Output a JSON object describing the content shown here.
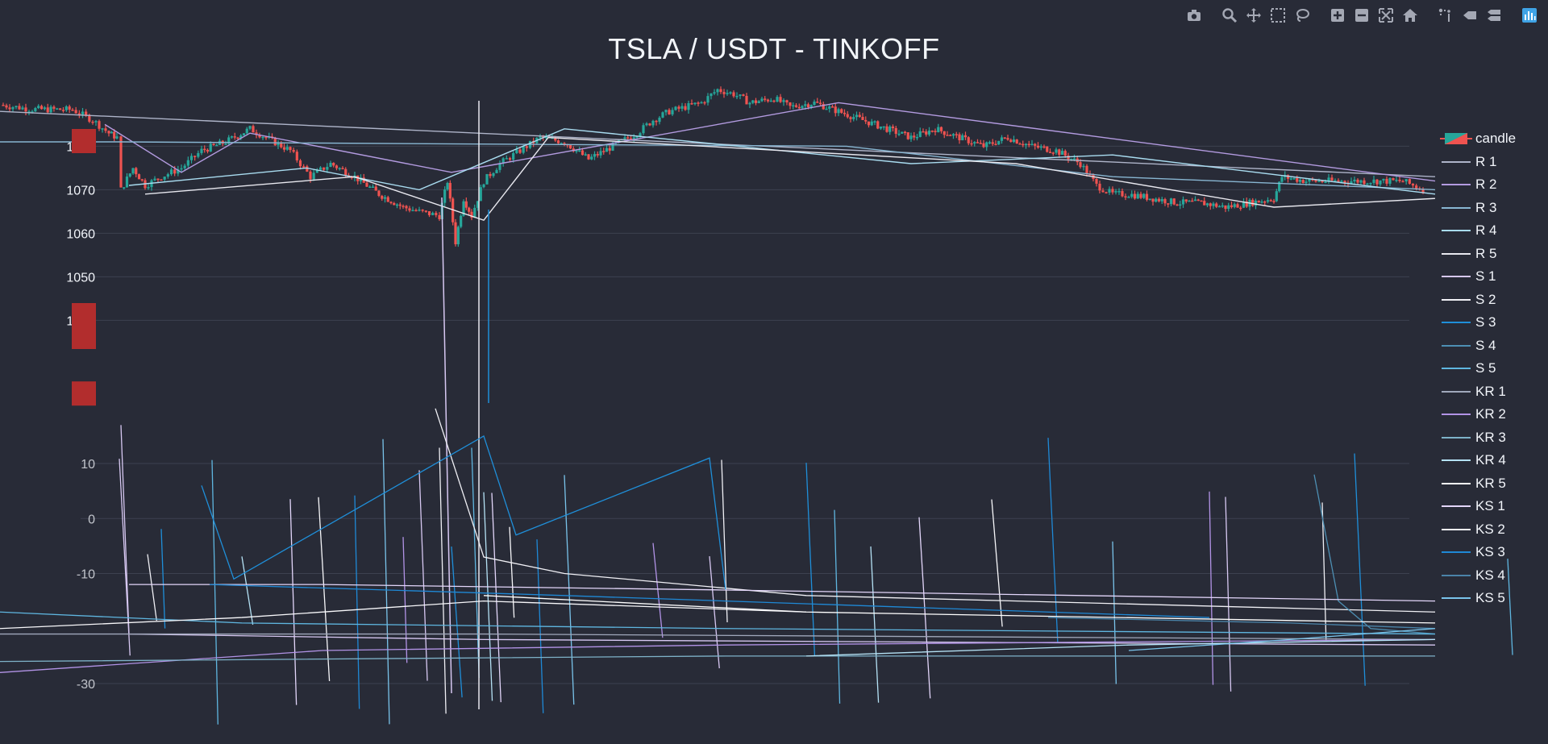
{
  "modebar": {
    "buttons": [
      {
        "name": "camera-icon",
        "group": 1
      },
      {
        "name": "zoom-icon",
        "group": 2
      },
      {
        "name": "pan-icon",
        "group": 2
      },
      {
        "name": "box-select-icon",
        "group": 2
      },
      {
        "name": "lasso-select-icon",
        "group": 2
      },
      {
        "name": "zoom-in-icon",
        "group": 3
      },
      {
        "name": "zoom-out-icon",
        "group": 3
      },
      {
        "name": "autoscale-icon",
        "group": 3
      },
      {
        "name": "reset-axes-icon",
        "group": 3
      },
      {
        "name": "spike-lines-icon",
        "group": 4
      },
      {
        "name": "hover-closest-icon",
        "group": 4
      },
      {
        "name": "hover-compare-icon",
        "group": 4
      },
      {
        "name": "plotly-logo-icon",
        "group": 5
      }
    ]
  },
  "colors": {
    "background": "#282b37",
    "grid": "#3d4150",
    "tick_text": "#f2f5fa",
    "candle_up": "#26a69a",
    "candle_down": "#ef5350",
    "marker": "#b22d2d",
    "R1": "#aeb4c9",
    "R2": "#b39be0",
    "R3": "#88b6d2",
    "R4": "#a9dcf0",
    "R5": "#e8e8ef",
    "S1": "#d7c8f2",
    "S2": "#f0f0f5",
    "S3": "#1f8fd9",
    "S4": "#4d8fb3",
    "S5": "#5fb6e0",
    "KR1": "#a0a8bb",
    "KR2": "#b293e6",
    "KR3": "#7eb2c8",
    "KR4": "#b5e2f5",
    "KR5": "#ffffff",
    "KS1": "#e3d6fa",
    "KS2": "#f7f7fa",
    "KS3": "#1f89d6",
    "KS4": "#4a83a8",
    "KS5": "#79c3ea"
  },
  "chart_data": {
    "type": "candlestick",
    "title": "TSLA / USDT - TINKOFF",
    "xlabel": "",
    "ylabel": "",
    "ylim": [
      1021,
      1096
    ],
    "y_ticks": [
      1040,
      1050,
      1060,
      1070,
      1080
    ],
    "indicator_ylim": [
      -41,
      21
    ],
    "indicator_ticks": [
      -30,
      -10,
      0,
      10
    ],
    "grid": true,
    "legend_placement": "right",
    "legend": [
      "candle",
      "R 1",
      "R 2",
      "R 3",
      "R 4",
      "R 5",
      "S 1",
      "S 2",
      "S 3",
      "S 4",
      "S 5",
      "KR 1",
      "KR 2",
      "KR 3",
      "KR 4",
      "KR 5",
      "KS 1",
      "KS 2",
      "KS 3",
      "KS 4",
      "KS 5"
    ],
    "price_path": [
      [
        0,
        1089.5
      ],
      [
        40,
        1088.5
      ],
      [
        90,
        1088.4
      ],
      [
        115,
        1086
      ],
      [
        135,
        1083
      ],
      [
        145,
        1082
      ],
      [
        150,
        1070
      ],
      [
        165,
        1075
      ],
      [
        180,
        1071
      ],
      [
        200,
        1073
      ],
      [
        225,
        1075
      ],
      [
        250,
        1079
      ],
      [
        280,
        1081
      ],
      [
        310,
        1084
      ],
      [
        330,
        1082
      ],
      [
        360,
        1079
      ],
      [
        385,
        1073
      ],
      [
        410,
        1076
      ],
      [
        440,
        1073
      ],
      [
        470,
        1069
      ],
      [
        500,
        1066
      ],
      [
        520,
        1065
      ],
      [
        545,
        1064
      ],
      [
        555,
        1072
      ],
      [
        565,
        1058
      ],
      [
        575,
        1068
      ],
      [
        585,
        1064
      ],
      [
        600,
        1072
      ],
      [
        620,
        1076
      ],
      [
        645,
        1079
      ],
      [
        670,
        1082
      ],
      [
        700,
        1081
      ],
      [
        730,
        1077
      ],
      [
        760,
        1080
      ],
      [
        790,
        1083
      ],
      [
        810,
        1086
      ],
      [
        830,
        1088
      ],
      [
        850,
        1089
      ],
      [
        870,
        1090
      ],
      [
        890,
        1093
      ],
      [
        910,
        1092
      ],
      [
        930,
        1090
      ],
      [
        960,
        1091
      ],
      [
        980,
        1089
      ],
      [
        1010,
        1090
      ],
      [
        1040,
        1088
      ],
      [
        1070,
        1086
      ],
      [
        1100,
        1084
      ],
      [
        1130,
        1082
      ],
      [
        1160,
        1084
      ],
      [
        1190,
        1082
      ],
      [
        1220,
        1080
      ],
      [
        1250,
        1082
      ],
      [
        1280,
        1080
      ],
      [
        1310,
        1079
      ],
      [
        1340,
        1076
      ],
      [
        1360,
        1071
      ],
      [
        1380,
        1069
      ],
      [
        1400,
        1069
      ],
      [
        1430,
        1068
      ],
      [
        1460,
        1067
      ],
      [
        1490,
        1067
      ],
      [
        1520,
        1066
      ],
      [
        1550,
        1067
      ],
      [
        1580,
        1068
      ],
      [
        1590,
        1073
      ],
      [
        1620,
        1072
      ],
      [
        1660,
        1072
      ],
      [
        1700,
        1072
      ],
      [
        1740,
        1072
      ],
      [
        1765,
        1070
      ]
    ],
    "markers": [
      1081,
      1041,
      1036,
      1023
    ],
    "series": [
      {
        "name": "candle",
        "type": "candlestick"
      },
      {
        "name": "R 1",
        "values": [
          [
            0,
            1088
          ],
          [
            1780,
            1073
          ]
        ]
      },
      {
        "name": "R 2",
        "values": [
          [
            130,
            1085
          ],
          [
            225,
            1074
          ],
          [
            310,
            1083
          ],
          [
            560,
            1074
          ],
          [
            620,
            1076
          ],
          [
            1040,
            1090
          ],
          [
            1780,
            1072
          ]
        ]
      },
      {
        "name": "R 3",
        "values": [
          [
            0,
            1081
          ],
          [
            150,
            1081
          ],
          [
            1050,
            1080
          ],
          [
            1380,
            1073
          ],
          [
            1780,
            1070
          ]
        ]
      },
      {
        "name": "R 4",
        "values": [
          [
            160,
            1071
          ],
          [
            380,
            1075
          ],
          [
            520,
            1070
          ],
          [
            700,
            1084
          ],
          [
            1130,
            1076
          ],
          [
            1380,
            1078
          ],
          [
            1780,
            1069
          ]
        ]
      },
      {
        "name": "R 5",
        "values": [
          [
            180,
            1069
          ],
          [
            440,
            1073
          ],
          [
            600,
            1063
          ],
          [
            680,
            1082
          ],
          [
            1260,
            1076
          ],
          [
            1580,
            1066
          ],
          [
            1780,
            1068
          ]
        ]
      }
    ],
    "indicator_series": [
      {
        "name": "S 1",
        "values": [
          [
            150,
            17
          ],
          [
            160,
            -21
          ],
          [
            600,
            -22
          ],
          [
            1780,
            -23
          ]
        ]
      },
      {
        "name": "S 2",
        "values": [
          [
            540,
            20
          ],
          [
            600,
            -7
          ],
          [
            700,
            -10
          ],
          [
            1000,
            -14
          ],
          [
            1780,
            -17
          ]
        ]
      },
      {
        "name": "S 3",
        "values": [
          [
            250,
            6
          ],
          [
            290,
            -11
          ],
          [
            600,
            15
          ],
          [
            640,
            -3
          ],
          [
            880,
            11
          ],
          [
            900,
            -13
          ]
        ]
      },
      {
        "name": "S 4",
        "values": [
          [
            1630,
            8
          ],
          [
            1660,
            -15
          ],
          [
            1700,
            -20
          ],
          [
            1780,
            -21
          ]
        ]
      },
      {
        "name": "S 5",
        "values": [
          [
            0,
            -17
          ],
          [
            300,
            -19
          ],
          [
            900,
            -20
          ],
          [
            1780,
            -21
          ]
        ]
      },
      {
        "name": "KR 1",
        "values": [
          [
            0,
            -21
          ],
          [
            600,
            -21
          ],
          [
            1780,
            -22
          ]
        ]
      },
      {
        "name": "KR 2",
        "values": [
          [
            0,
            -28
          ],
          [
            400,
            -24
          ],
          [
            900,
            -23
          ],
          [
            1780,
            -22
          ]
        ]
      },
      {
        "name": "KR 3",
        "values": [
          [
            0,
            -26
          ],
          [
            900,
            -25
          ],
          [
            1780,
            -25
          ]
        ]
      },
      {
        "name": "KR 4",
        "values": [
          [
            1000,
            -25
          ],
          [
            1400,
            -23
          ],
          [
            1780,
            -22
          ]
        ]
      },
      {
        "name": "KR 5",
        "values": [
          [
            600,
            -14
          ],
          [
            1000,
            -17
          ],
          [
            1780,
            -19
          ]
        ]
      },
      {
        "name": "KS 1",
        "values": [
          [
            160,
            -12
          ],
          [
            400,
            -12
          ],
          [
            900,
            -13
          ],
          [
            1780,
            -15
          ]
        ]
      },
      {
        "name": "KS 2",
        "values": [
          [
            0,
            -20
          ],
          [
            300,
            -18
          ],
          [
            600,
            -15
          ],
          [
            1000,
            -17
          ]
        ]
      },
      {
        "name": "KS 3",
        "values": [
          [
            260,
            -12
          ],
          [
            700,
            -14
          ],
          [
            1500,
            -18
          ]
        ]
      },
      {
        "name": "KS 4",
        "values": [
          [
            1300,
            -18
          ],
          [
            1600,
            -19
          ],
          [
            1780,
            -20
          ]
        ]
      },
      {
        "name": "KS 5",
        "values": [
          [
            1400,
            -24
          ],
          [
            1600,
            -22
          ],
          [
            1780,
            -20
          ]
        ]
      }
    ]
  }
}
